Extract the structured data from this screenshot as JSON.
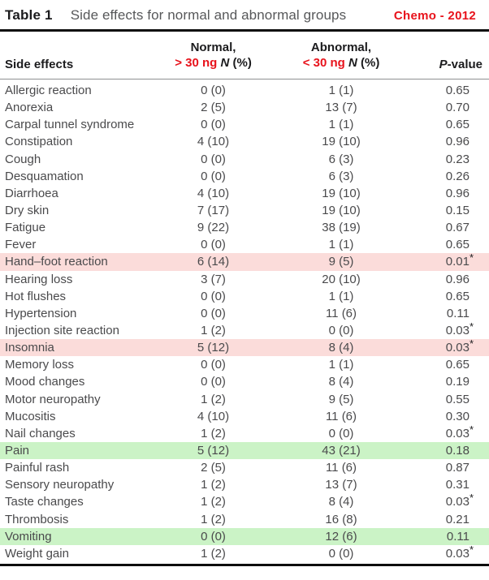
{
  "header": {
    "table_label": "Table 1",
    "title": "Side effects for normal and abnormal groups",
    "annotation": "Chemo - 2012"
  },
  "columns": {
    "side_effects": "Side effects",
    "normal_line1": "Normal,",
    "normal_threshold": "> 30 ng",
    "abnormal_line1": "Abnormal,",
    "abnormal_threshold": "< 30 ng",
    "n_italic": "N",
    "n_pct": "(%)",
    "pvalue_p": "P",
    "pvalue_rest": "-value"
  },
  "colors": {
    "annotation_red": "#e8121b",
    "pink_highlight": "#fbdcda",
    "green_highlight": "#cbf3c6",
    "body_text": "#4a4a4c",
    "heading_text": "#1b1b1d"
  },
  "rows": [
    {
      "name": "Allergic reaction",
      "normal": "0 (0)",
      "abnormal": "1 (1)",
      "p": "0.65",
      "star": false,
      "highlight": null
    },
    {
      "name": "Anorexia",
      "normal": "2 (5)",
      "abnormal": "13 (7)",
      "p": "0.70",
      "star": false,
      "highlight": null
    },
    {
      "name": "Carpal tunnel syndrome",
      "normal": "0 (0)",
      "abnormal": "1 (1)",
      "p": "0.65",
      "star": false,
      "highlight": null
    },
    {
      "name": "Constipation",
      "normal": "4 (10)",
      "abnormal": "19 (10)",
      "p": "0.96",
      "star": false,
      "highlight": null
    },
    {
      "name": "Cough",
      "normal": "0 (0)",
      "abnormal": "6 (3)",
      "p": "0.23",
      "star": false,
      "highlight": null
    },
    {
      "name": "Desquamation",
      "normal": "0 (0)",
      "abnormal": "6 (3)",
      "p": "0.26",
      "star": false,
      "highlight": null
    },
    {
      "name": "Diarrhoea",
      "normal": "4 (10)",
      "abnormal": "19 (10)",
      "p": "0.96",
      "star": false,
      "highlight": null
    },
    {
      "name": "Dry skin",
      "normal": "7 (17)",
      "abnormal": "19 (10)",
      "p": "0.15",
      "star": false,
      "highlight": null
    },
    {
      "name": "Fatigue",
      "normal": "9 (22)",
      "abnormal": "38 (19)",
      "p": "0.67",
      "star": false,
      "highlight": null
    },
    {
      "name": "Fever",
      "normal": "0 (0)",
      "abnormal": "1 (1)",
      "p": "0.65",
      "star": false,
      "highlight": null
    },
    {
      "name": "Hand–foot reaction",
      "normal": "6 (14)",
      "abnormal": "9 (5)",
      "p": "0.01",
      "star": true,
      "highlight": "pink"
    },
    {
      "name": "Hearing loss",
      "normal": "3 (7)",
      "abnormal": "20 (10)",
      "p": "0.96",
      "star": false,
      "highlight": null
    },
    {
      "name": "Hot flushes",
      "normal": "0 (0)",
      "abnormal": "1 (1)",
      "p": "0.65",
      "star": false,
      "highlight": null
    },
    {
      "name": "Hypertension",
      "normal": "0 (0)",
      "abnormal": "11 (6)",
      "p": "0.11",
      "star": false,
      "highlight": null
    },
    {
      "name": "Injection site reaction",
      "normal": "1 (2)",
      "abnormal": "0 (0)",
      "p": "0.03",
      "star": true,
      "highlight": null
    },
    {
      "name": "Insomnia",
      "normal": "5 (12)",
      "abnormal": "8 (4)",
      "p": "0.03",
      "star": true,
      "highlight": "pink"
    },
    {
      "name": "Memory loss",
      "normal": "0 (0)",
      "abnormal": "1 (1)",
      "p": "0.65",
      "star": false,
      "highlight": null
    },
    {
      "name": "Mood changes",
      "normal": "0 (0)",
      "abnormal": "8 (4)",
      "p": "0.19",
      "star": false,
      "highlight": null
    },
    {
      "name": "Motor neuropathy",
      "normal": "1 (2)",
      "abnormal": "9 (5)",
      "p": "0.55",
      "star": false,
      "highlight": null
    },
    {
      "name": "Mucositis",
      "normal": "4 (10)",
      "abnormal": "11 (6)",
      "p": "0.30",
      "star": false,
      "highlight": null
    },
    {
      "name": "Nail changes",
      "normal": "1 (2)",
      "abnormal": "0 (0)",
      "p": "0.03",
      "star": true,
      "highlight": null
    },
    {
      "name": "Pain",
      "normal": "5 (12)",
      "abnormal": "43 (21)",
      "p": "0.18",
      "star": false,
      "highlight": "green"
    },
    {
      "name": "Painful rash",
      "normal": "2 (5)",
      "abnormal": "11 (6)",
      "p": "0.87",
      "star": false,
      "highlight": null
    },
    {
      "name": "Sensory neuropathy",
      "normal": "1 (2)",
      "abnormal": "13 (7)",
      "p": "0.31",
      "star": false,
      "highlight": null
    },
    {
      "name": "Taste changes",
      "normal": "1 (2)",
      "abnormal": "8 (4)",
      "p": "0.03",
      "star": true,
      "highlight": null
    },
    {
      "name": "Thrombosis",
      "normal": "1 (2)",
      "abnormal": "16 (8)",
      "p": "0.21",
      "star": false,
      "highlight": null
    },
    {
      "name": "Vomiting",
      "normal": "0 (0)",
      "abnormal": "12 (6)",
      "p": "0.11",
      "star": false,
      "highlight": "green"
    },
    {
      "name": "Weight gain",
      "normal": "1 (2)",
      "abnormal": "0 (0)",
      "p": "0.03",
      "star": true,
      "highlight": null
    }
  ]
}
